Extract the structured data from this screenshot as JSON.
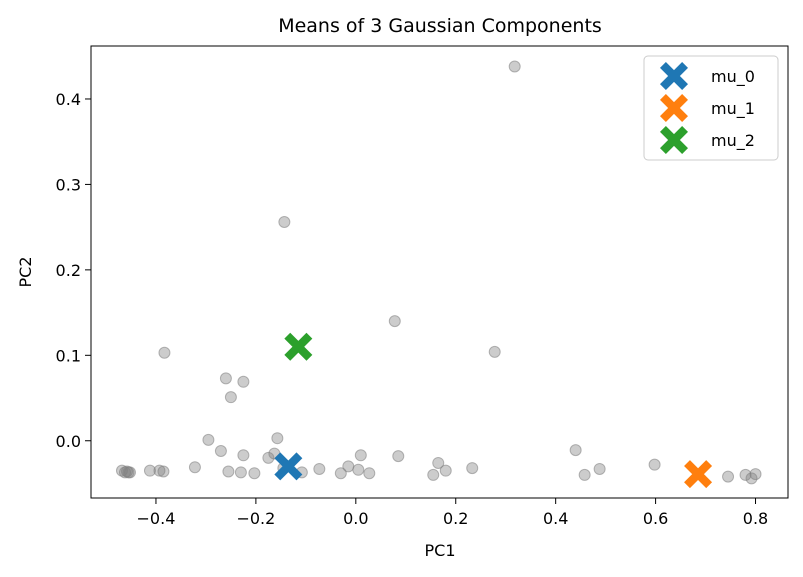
{
  "chart_data": {
    "type": "scatter",
    "title": "Means of 3 Gaussian Components",
    "xlabel": "PC1",
    "ylabel": "PC2",
    "xlim": [
      -0.53,
      0.865
    ],
    "ylim": [
      -0.067,
      0.462
    ],
    "xticks": [
      -0.4,
      -0.2,
      0.0,
      0.2,
      0.4,
      0.6,
      0.8
    ],
    "xtick_labels": [
      "−0.4",
      "−0.2",
      "0.0",
      "0.2",
      "0.4",
      "0.6",
      "0.8"
    ],
    "yticks": [
      0.0,
      0.1,
      0.2,
      0.3,
      0.4
    ],
    "ytick_labels": [
      "0.0",
      "0.1",
      "0.2",
      "0.3",
      "0.4"
    ],
    "grid": false,
    "legend_position": "top-right",
    "points_color": "#808080",
    "points": [
      {
        "x": 0.318,
        "y": 0.438
      },
      {
        "x": -0.143,
        "y": 0.256
      },
      {
        "x": 0.078,
        "y": 0.14
      },
      {
        "x": -0.383,
        "y": 0.103
      },
      {
        "x": 0.278,
        "y": 0.104
      },
      {
        "x": -0.26,
        "y": 0.073
      },
      {
        "x": -0.225,
        "y": 0.069
      },
      {
        "x": -0.25,
        "y": 0.051
      },
      {
        "x": -0.295,
        "y": 0.001
      },
      {
        "x": -0.157,
        "y": 0.003
      },
      {
        "x": -0.27,
        "y": -0.012
      },
      {
        "x": -0.225,
        "y": -0.017
      },
      {
        "x": -0.163,
        "y": -0.015
      },
      {
        "x": -0.175,
        "y": -0.02
      },
      {
        "x": 0.01,
        "y": -0.017
      },
      {
        "x": 0.085,
        "y": -0.018
      },
      {
        "x": 0.44,
        "y": -0.011
      },
      {
        "x": 0.165,
        "y": -0.026
      },
      {
        "x": 0.598,
        "y": -0.028
      },
      {
        "x": -0.468,
        "y": -0.035
      },
      {
        "x": -0.462,
        "y": -0.037
      },
      {
        "x": -0.458,
        "y": -0.036
      },
      {
        "x": -0.455,
        "y": -0.037
      },
      {
        "x": -0.452,
        "y": -0.037
      },
      {
        "x": -0.412,
        "y": -0.035
      },
      {
        "x": -0.393,
        "y": -0.035
      },
      {
        "x": -0.385,
        "y": -0.036
      },
      {
        "x": -0.322,
        "y": -0.031
      },
      {
        "x": -0.255,
        "y": -0.036
      },
      {
        "x": -0.23,
        "y": -0.037
      },
      {
        "x": -0.203,
        "y": -0.038
      },
      {
        "x": -0.145,
        "y": -0.032
      },
      {
        "x": -0.108,
        "y": -0.037
      },
      {
        "x": -0.073,
        "y": -0.033
      },
      {
        "x": -0.03,
        "y": -0.038
      },
      {
        "x": -0.015,
        "y": -0.03
      },
      {
        "x": 0.005,
        "y": -0.034
      },
      {
        "x": 0.027,
        "y": -0.038
      },
      {
        "x": 0.155,
        "y": -0.04
      },
      {
        "x": 0.18,
        "y": -0.035
      },
      {
        "x": 0.233,
        "y": -0.032
      },
      {
        "x": 0.458,
        "y": -0.04
      },
      {
        "x": 0.488,
        "y": -0.033
      },
      {
        "x": 0.745,
        "y": -0.042
      },
      {
        "x": 0.78,
        "y": -0.04
      },
      {
        "x": 0.792,
        "y": -0.044
      },
      {
        "x": 0.8,
        "y": -0.039
      }
    ],
    "series": [
      {
        "name": "mu_0",
        "x": -0.135,
        "y": -0.03,
        "color": "#1f77b4"
      },
      {
        "name": "mu_1",
        "x": 0.685,
        "y": -0.039,
        "color": "#ff7f0e"
      },
      {
        "name": "mu_2",
        "x": -0.115,
        "y": 0.11,
        "color": "#2ca02c"
      }
    ]
  }
}
